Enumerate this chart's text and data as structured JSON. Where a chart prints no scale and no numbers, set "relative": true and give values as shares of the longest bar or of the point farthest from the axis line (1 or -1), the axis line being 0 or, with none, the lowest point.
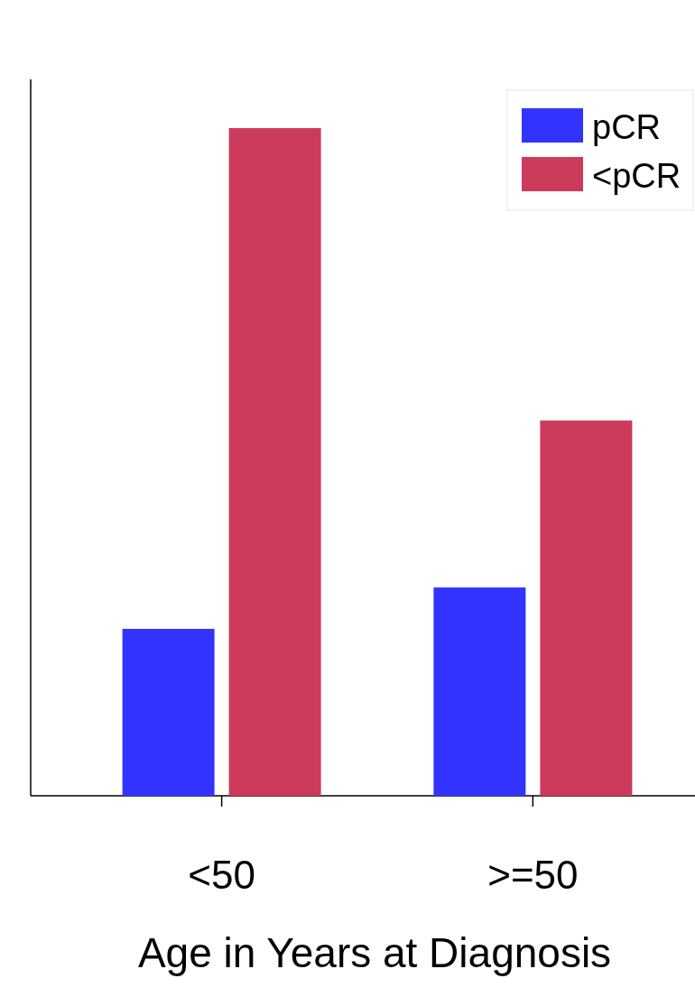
{
  "chart_data": {
    "type": "bar",
    "relative": true,
    "xlabel": "Age in Years at Diagnosis",
    "categories": [
      "<50",
      ">=50"
    ],
    "series": [
      {
        "name": "pCR",
        "color": "#3333ff",
        "values": [
          0.25,
          0.312
        ]
      },
      {
        "name": "<pCR",
        "color": "#cc3a5c",
        "values": [
          1,
          0.562
        ]
      }
    ],
    "legend": "top right"
  }
}
